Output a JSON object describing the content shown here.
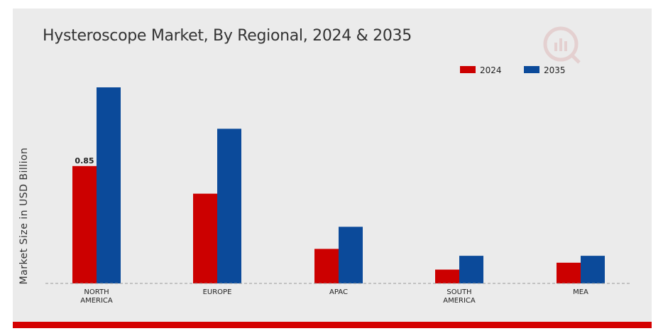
{
  "chart_data": {
    "type": "bar",
    "title": "Hysteroscope Market, By Regional, 2024 & 2035",
    "ylabel": "Market Size in USD Billion",
    "xlabel": "",
    "categories": [
      "NORTH AMERICA",
      "EUROPE",
      "APAC",
      "SOUTH AMERICA",
      "MEA"
    ],
    "series": [
      {
        "name": "2024",
        "color": "#cc0000",
        "values": [
          0.85,
          0.65,
          0.25,
          0.1,
          0.15
        ]
      },
      {
        "name": "2035",
        "color": "#0b4a9a",
        "values": [
          1.42,
          1.12,
          0.41,
          0.2,
          0.2
        ]
      }
    ],
    "data_labels": [
      {
        "series": 0,
        "index": 0,
        "text": "0.85"
      }
    ],
    "ylim": [
      0,
      1.6
    ],
    "grid": false,
    "legend_position": "top-right",
    "baseline": "dashed"
  }
}
